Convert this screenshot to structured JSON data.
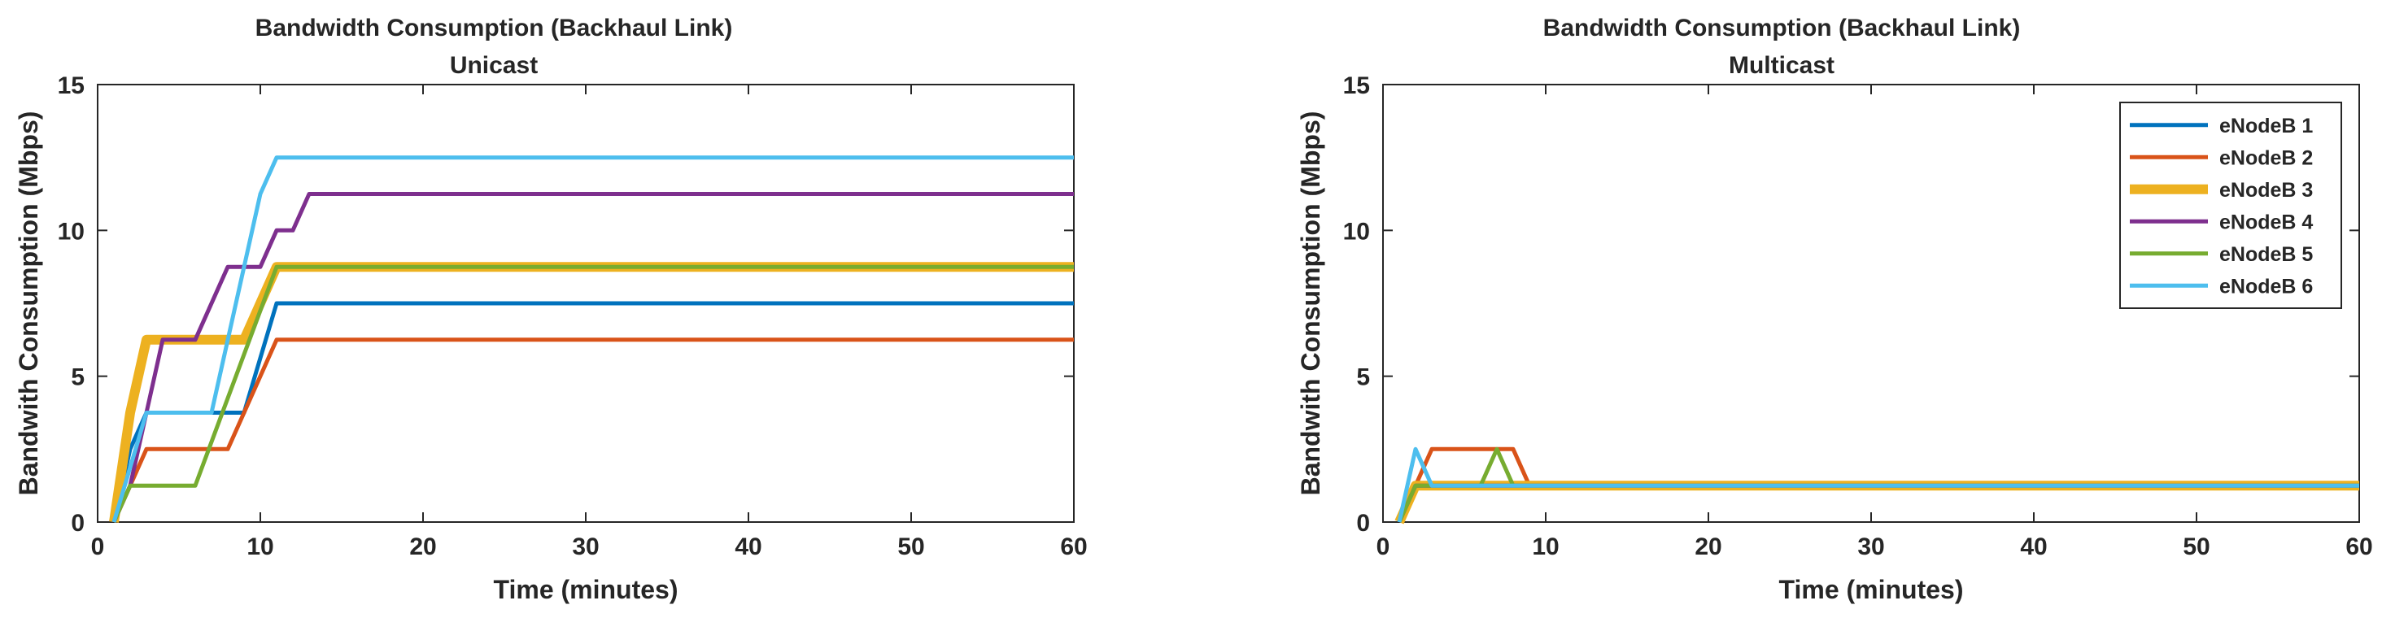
{
  "chart_data": [
    {
      "type": "line",
      "title": "Bandwidth Consumption (Backhaul Link)",
      "subtitle": "Unicast",
      "xlabel": "Time (minutes)",
      "ylabel": "Bandwith Consumption (Mbps)",
      "xlim": [
        0,
        60
      ],
      "ylim": [
        0,
        15
      ],
      "xticks": [
        0,
        10,
        20,
        30,
        40,
        50,
        60
      ],
      "yticks": [
        0,
        5,
        10,
        15
      ],
      "grid": false,
      "series": [
        {
          "name": "eNodeB 1",
          "color": "#0072BD",
          "width": "normal",
          "x": [
            1,
            2,
            3,
            8,
            9,
            11,
            60
          ],
          "y": [
            0,
            2.5,
            3.75,
            3.75,
            3.75,
            7.5,
            7.5
          ]
        },
        {
          "name": "eNodeB 2",
          "color": "#D95319",
          "width": "normal",
          "x": [
            1,
            2,
            3,
            8,
            9,
            11,
            60
          ],
          "y": [
            0,
            1.25,
            2.5,
            2.5,
            3.75,
            6.25,
            6.25
          ]
        },
        {
          "name": "eNodeB 3",
          "color": "#EDB120",
          "width": "thick",
          "x": [
            1,
            2,
            3,
            9,
            11,
            60
          ],
          "y": [
            0,
            3.75,
            6.25,
            6.25,
            8.75,
            8.75
          ]
        },
        {
          "name": "eNodeB 4",
          "color": "#7E2F8E",
          "width": "normal",
          "x": [
            1,
            2,
            3,
            4,
            6,
            8,
            10,
            11,
            12,
            13,
            60
          ],
          "y": [
            0,
            1.25,
            3.75,
            6.25,
            6.25,
            8.75,
            8.75,
            10,
            10,
            11.25,
            11.25
          ]
        },
        {
          "name": "eNodeB 5",
          "color": "#77AC30",
          "width": "normal",
          "x": [
            1,
            2,
            6,
            11,
            60
          ],
          "y": [
            0,
            1.25,
            1.25,
            8.75,
            8.75
          ]
        },
        {
          "name": "eNodeB 6",
          "color": "#4DBEEE",
          "width": "normal",
          "x": [
            1,
            3,
            7,
            10,
            11,
            60
          ],
          "y": [
            0,
            3.75,
            3.75,
            11.25,
            12.5,
            12.5
          ]
        }
      ]
    },
    {
      "type": "line",
      "title": "Bandwidth Consumption (Backhaul Link)",
      "subtitle": "Multicast",
      "xlabel": "Time (minutes)",
      "ylabel": "Bandwith Consumption (Mbps)",
      "xlim": [
        0,
        60
      ],
      "ylim": [
        0,
        15
      ],
      "xticks": [
        0,
        10,
        20,
        30,
        40,
        50,
        60
      ],
      "yticks": [
        0,
        5,
        10,
        15
      ],
      "grid": false,
      "legend": "top-right",
      "series": [
        {
          "name": "eNodeB 1",
          "color": "#0072BD",
          "width": "normal",
          "x": [
            1,
            2,
            60
          ],
          "y": [
            0,
            1.25,
            1.25
          ]
        },
        {
          "name": "eNodeB 2",
          "color": "#D95319",
          "width": "normal",
          "x": [
            1,
            2,
            3,
            8,
            9,
            60
          ],
          "y": [
            0,
            1.25,
            2.5,
            2.5,
            1.25,
            1.25
          ]
        },
        {
          "name": "eNodeB 3",
          "color": "#EDB120",
          "width": "thick",
          "x": [
            1,
            2,
            60
          ],
          "y": [
            0,
            1.25,
            1.25
          ]
        },
        {
          "name": "eNodeB 4",
          "color": "#7E2F8E",
          "width": "normal",
          "x": [
            1,
            2,
            60
          ],
          "y": [
            0,
            1.25,
            1.25
          ]
        },
        {
          "name": "eNodeB 5",
          "color": "#77AC30",
          "width": "normal",
          "x": [
            1,
            2,
            6,
            7,
            8,
            60
          ],
          "y": [
            0,
            1.25,
            1.25,
            2.5,
            1.25,
            1.25
          ]
        },
        {
          "name": "eNodeB 6",
          "color": "#4DBEEE",
          "width": "normal",
          "x": [
            1,
            2,
            3,
            60
          ],
          "y": [
            0,
            2.5,
            1.25,
            1.25
          ]
        }
      ]
    }
  ]
}
